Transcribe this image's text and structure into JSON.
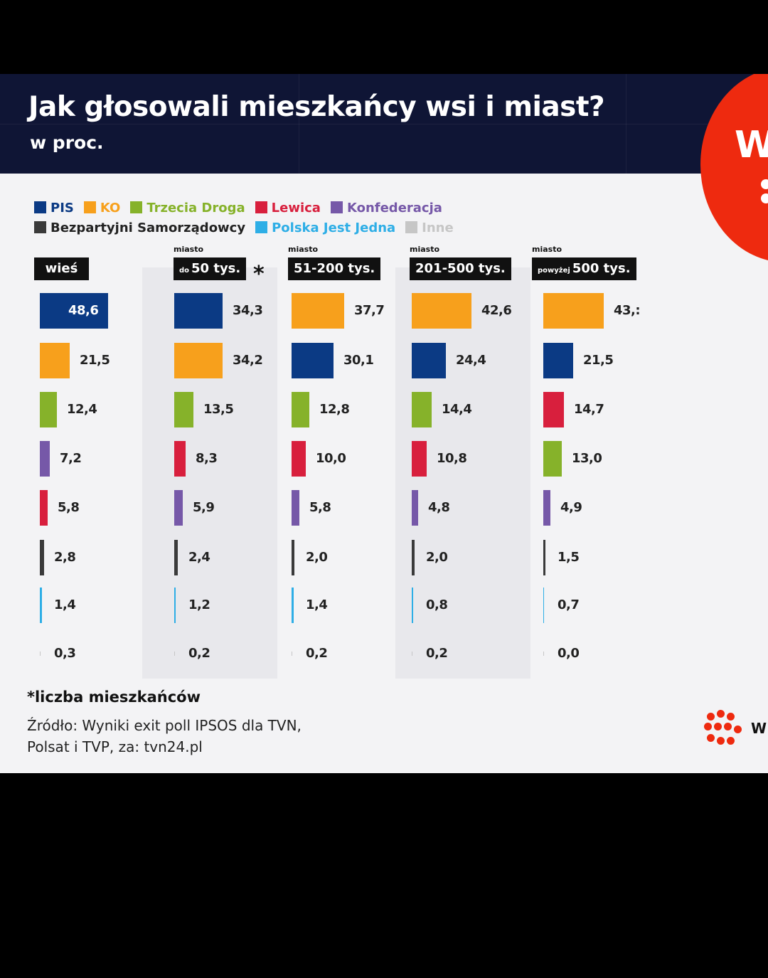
{
  "header": {
    "title": "Jak głosowali mieszkańcy wsi i miast?",
    "subtitle": "w proc."
  },
  "logo": {
    "letter": "W"
  },
  "legend": [
    {
      "name": "PIS",
      "color": "#0b3a84",
      "text_color": "#0b3a84"
    },
    {
      "name": "KO",
      "color": "#f7a01c",
      "text_color": "#f7a01c"
    },
    {
      "name": "Trzecia Droga",
      "color": "#86b22a",
      "text_color": "#86b22a"
    },
    {
      "name": "Lewica",
      "color": "#d81f3d",
      "text_color": "#d81f3d"
    },
    {
      "name": "Konfederacja",
      "color": "#7658a8",
      "text_color": "#7658a8"
    },
    {
      "name": "Bezpartyjni Samorządowcy",
      "color": "#3a3a3a",
      "text_color": "#222222"
    },
    {
      "name": "Polska Jest Jedna",
      "color": "#2eaee6",
      "text_color": "#2eaee6"
    },
    {
      "name": "Inne",
      "color": "#c6c6c6",
      "text_color": "#c6c6c6"
    }
  ],
  "chart_data": {
    "type": "bar",
    "title": "Jak głosowali mieszkańcy wsi i miast?",
    "subtitle": "w proc.",
    "orientation": "horizontal",
    "groups": [
      {
        "pre": "",
        "small": "",
        "label": "wieś",
        "star": "",
        "bars": [
          {
            "party": "PIS",
            "value": "48,6",
            "num": 48.6
          },
          {
            "party": "KO",
            "value": "21,5",
            "num": 21.5
          },
          {
            "party": "Trzecia Droga",
            "value": "12,4",
            "num": 12.4
          },
          {
            "party": "Konfederacja",
            "value": "7,2",
            "num": 7.2
          },
          {
            "party": "Lewica",
            "value": "5,8",
            "num": 5.8
          },
          {
            "party": "Bezpartyjni Samorządowcy",
            "value": "2,8",
            "num": 2.8
          },
          {
            "party": "Polska Jest Jedna",
            "value": "1,4",
            "num": 1.4
          },
          {
            "party": "Inne",
            "value": "0,3",
            "num": 0.3
          }
        ]
      },
      {
        "pre": "miasto",
        "small": "do",
        "label": "50 tys.",
        "star": "*",
        "bars": [
          {
            "party": "PIS",
            "value": "34,3",
            "num": 34.3
          },
          {
            "party": "KO",
            "value": "34,2",
            "num": 34.2
          },
          {
            "party": "Trzecia Droga",
            "value": "13,5",
            "num": 13.5
          },
          {
            "party": "Lewica",
            "value": "8,3",
            "num": 8.3
          },
          {
            "party": "Konfederacja",
            "value": "5,9",
            "num": 5.9
          },
          {
            "party": "Bezpartyjni Samorządowcy",
            "value": "2,4",
            "num": 2.4
          },
          {
            "party": "Polska Jest Jedna",
            "value": "1,2",
            "num": 1.2
          },
          {
            "party": "Inne",
            "value": "0,2",
            "num": 0.2
          }
        ]
      },
      {
        "pre": "miasto",
        "small": "",
        "label": "51-200 tys.",
        "star": "",
        "bars": [
          {
            "party": "KO",
            "value": "37,7",
            "num": 37.7
          },
          {
            "party": "PIS",
            "value": "30,1",
            "num": 30.1
          },
          {
            "party": "Trzecia Droga",
            "value": "12,8",
            "num": 12.8
          },
          {
            "party": "Lewica",
            "value": "10,0",
            "num": 10.0
          },
          {
            "party": "Konfederacja",
            "value": "5,8",
            "num": 5.8
          },
          {
            "party": "Bezpartyjni Samorządowcy",
            "value": "2,0",
            "num": 2.0
          },
          {
            "party": "Polska Jest Jedna",
            "value": "1,4",
            "num": 1.4
          },
          {
            "party": "Inne",
            "value": "0,2",
            "num": 0.2
          }
        ]
      },
      {
        "pre": "miasto",
        "small": "",
        "label": "201-500 tys.",
        "star": "",
        "bars": [
          {
            "party": "KO",
            "value": "42,6",
            "num": 42.6
          },
          {
            "party": "PIS",
            "value": "24,4",
            "num": 24.4
          },
          {
            "party": "Trzecia Droga",
            "value": "14,4",
            "num": 14.4
          },
          {
            "party": "Lewica",
            "value": "10,8",
            "num": 10.8
          },
          {
            "party": "Konfederacja",
            "value": "4,8",
            "num": 4.8
          },
          {
            "party": "Bezpartyjni Samorządowcy",
            "value": "2,0",
            "num": 2.0
          },
          {
            "party": "Polska Jest Jedna",
            "value": "0,8",
            "num": 0.8
          },
          {
            "party": "Inne",
            "value": "0,2",
            "num": 0.2
          }
        ]
      },
      {
        "pre": "miasto",
        "small": "powyżej",
        "label": "500 tys.",
        "star": "",
        "bars": [
          {
            "party": "KO",
            "value": "43,:",
            "num": 43.2
          },
          {
            "party": "PIS",
            "value": "21,5",
            "num": 21.5
          },
          {
            "party": "Lewica",
            "value": "14,7",
            "num": 14.7
          },
          {
            "party": "Trzecia Droga",
            "value": "13,0",
            "num": 13.0
          },
          {
            "party": "Konfederacja",
            "value": "4,9",
            "num": 4.9
          },
          {
            "party": "Bezpartyjni Samorządowcy",
            "value": "1,5",
            "num": 1.5
          },
          {
            "party": "Polska Jest Jedna",
            "value": "0,7",
            "num": 0.7
          },
          {
            "party": "Inne",
            "value": "0,0",
            "num": 0.0
          }
        ]
      }
    ]
  },
  "footer": {
    "footnote": "*liczba mieszkańców",
    "source_line1": "Źródło: Wyniki exit poll IPSOS dla TVN,",
    "source_line2": "Polsat i TVP, za: tvn24.pl",
    "brand_letter": "W"
  }
}
